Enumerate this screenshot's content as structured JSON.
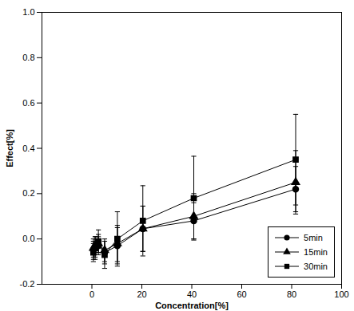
{
  "chart_data": {
    "type": "line",
    "x_label": "Concentration[%]",
    "y_label": "Effect[%]",
    "x": [
      0.6,
      1.3,
      2.6,
      5.1,
      10.2,
      20.4,
      40.8,
      81.6
    ],
    "series": [
      {
        "name": "5min",
        "color": "#000000",
        "marker": "circle",
        "values": [
          -0.05,
          -0.04,
          -0.03,
          -0.06,
          -0.03,
          0.045,
          0.08,
          0.22
        ],
        "errors": [
          0.04,
          0.04,
          0.04,
          0.05,
          0.08,
          0.1,
          0.08,
          0.1
        ]
      },
      {
        "name": "15min",
        "color": "#000000",
        "marker": "triangle",
        "values": [
          -0.04,
          -0.03,
          -0.02,
          -0.05,
          -0.02,
          0.045,
          0.1,
          0.25
        ],
        "errors": [
          0.04,
          0.04,
          0.04,
          0.05,
          0.08,
          0.1,
          0.1,
          0.14
        ]
      },
      {
        "name": "30min",
        "color": "#000000",
        "marker": "square",
        "values": [
          -0.06,
          -0.04,
          -0.01,
          -0.07,
          0.0,
          0.08,
          0.18,
          0.35
        ],
        "errors": [
          0.04,
          0.05,
          0.05,
          0.06,
          0.12,
          0.155,
          0.185,
          0.2
        ]
      }
    ],
    "xlim": [
      -20,
      100
    ],
    "xticks": [
      0,
      20,
      40,
      60,
      80,
      100
    ],
    "ylim": [
      -0.2,
      1.0
    ],
    "yticks": [
      -0.2,
      {
        "value": 0,
        "label": "0.0"
      },
      0.2,
      0.4,
      0.6,
      0.8,
      {
        "value": 1,
        "label": "1.0"
      }
    ],
    "legend": "lower right"
  }
}
